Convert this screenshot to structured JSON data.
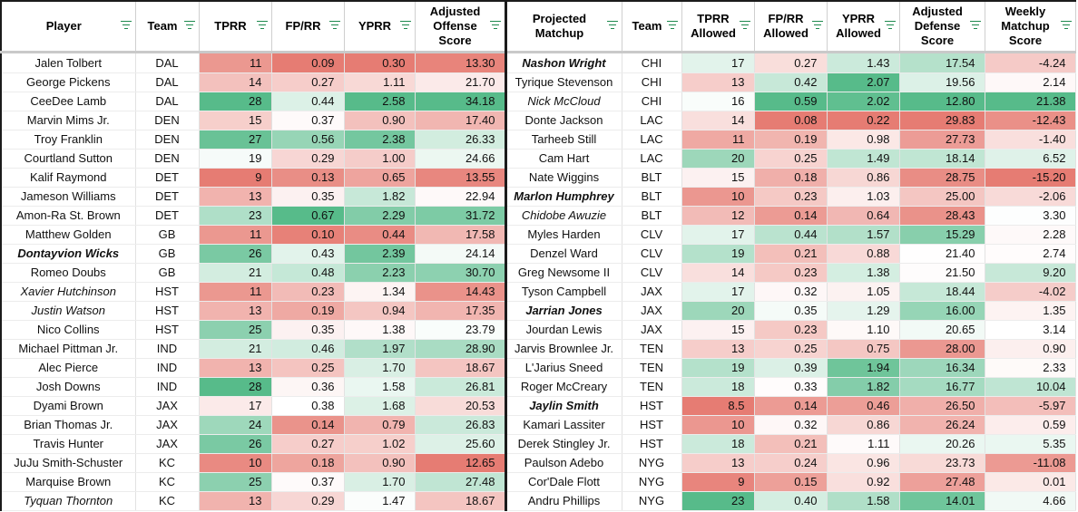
{
  "headers": {
    "player": "Player",
    "team": "Team",
    "tprr": "TPRR",
    "fprr": "FP/RR",
    "yprr": "YPRR",
    "adj_offense": "Adjusted Offense Score",
    "matchup": "Projected Matchup",
    "team2": "Team",
    "tprr_allowed": "TPRR Allowed",
    "fprr_allowed": "FP/RR Allowed",
    "yprr_allowed": "YPRR Allowed",
    "adj_defense": "Adjusted Defense Score",
    "weekly_score": "Weekly Matchup Score"
  },
  "colors": {
    "green_strong": "#57bb8a",
    "red_strong": "#e67c73",
    "neutral": "#ffffff",
    "filter_icon": "#1e8a4e"
  },
  "rows": [
    {
      "player": "Jalen Tolbert",
      "player_style": "",
      "team": "DAL",
      "tprr": "11",
      "fprr": "0.09",
      "yprr": "0.30",
      "adj_off": "13.30",
      "matchup": "Nashon Wright",
      "matchup_style": "bi",
      "team2": "CHI",
      "tprr_a": "17",
      "fprr_a": "0.27",
      "yprr_a": "1.43",
      "adj_def": "17.54",
      "weekly": "-4.24"
    },
    {
      "player": "George Pickens",
      "player_style": "",
      "team": "DAL",
      "tprr": "14",
      "fprr": "0.27",
      "yprr": "1.11",
      "adj_off": "21.70",
      "matchup": "Tyrique Stevenson",
      "matchup_style": "",
      "team2": "CHI",
      "tprr_a": "13",
      "fprr_a": "0.42",
      "yprr_a": "2.07",
      "adj_def": "19.56",
      "weekly": "2.14"
    },
    {
      "player": "CeeDee Lamb",
      "player_style": "",
      "team": "DAL",
      "tprr": "28",
      "fprr": "0.44",
      "yprr": "2.58",
      "adj_off": "34.18",
      "matchup": "Nick McCloud",
      "matchup_style": "it",
      "team2": "CHI",
      "tprr_a": "16",
      "fprr_a": "0.59",
      "yprr_a": "2.02",
      "adj_def": "12.80",
      "weekly": "21.38"
    },
    {
      "player": "Marvin Mims Jr.",
      "player_style": "",
      "team": "DEN",
      "tprr": "15",
      "fprr": "0.37",
      "yprr": "0.90",
      "adj_off": "17.40",
      "matchup": "Donte Jackson",
      "matchup_style": "",
      "team2": "LAC",
      "tprr_a": "14",
      "fprr_a": "0.08",
      "yprr_a": "0.22",
      "adj_def": "29.83",
      "weekly": "-12.43"
    },
    {
      "player": "Troy Franklin",
      "player_style": "",
      "team": "DEN",
      "tprr": "27",
      "fprr": "0.56",
      "yprr": "2.38",
      "adj_off": "26.33",
      "matchup": "Tarheeb Still",
      "matchup_style": "",
      "team2": "LAC",
      "tprr_a": "11",
      "fprr_a": "0.19",
      "yprr_a": "0.98",
      "adj_def": "27.73",
      "weekly": "-1.40"
    },
    {
      "player": "Courtland Sutton",
      "player_style": "",
      "team": "DEN",
      "tprr": "19",
      "fprr": "0.29",
      "yprr": "1.00",
      "adj_off": "24.66",
      "matchup": "Cam Hart",
      "matchup_style": "",
      "team2": "LAC",
      "tprr_a": "20",
      "fprr_a": "0.25",
      "yprr_a": "1.49",
      "adj_def": "18.14",
      "weekly": "6.52"
    },
    {
      "player": "Kalif Raymond",
      "player_style": "",
      "team": "DET",
      "tprr": "9",
      "fprr": "0.13",
      "yprr": "0.65",
      "adj_off": "13.55",
      "matchup": "Nate Wiggins",
      "matchup_style": "",
      "team2": "BLT",
      "tprr_a": "15",
      "fprr_a": "0.18",
      "yprr_a": "0.86",
      "adj_def": "28.75",
      "weekly": "-15.20"
    },
    {
      "player": "Jameson Williams",
      "player_style": "",
      "team": "DET",
      "tprr": "13",
      "fprr": "0.35",
      "yprr": "1.82",
      "adj_off": "22.94",
      "matchup": "Marlon Humphrey",
      "matchup_style": "bi",
      "team2": "BLT",
      "tprr_a": "10",
      "fprr_a": "0.23",
      "yprr_a": "1.03",
      "adj_def": "25.00",
      "weekly": "-2.06"
    },
    {
      "player": "Amon-Ra St. Brown",
      "player_style": "",
      "team": "DET",
      "tprr": "23",
      "fprr": "0.67",
      "yprr": "2.29",
      "adj_off": "31.72",
      "matchup": "Chidobe Awuzie",
      "matchup_style": "it",
      "team2": "BLT",
      "tprr_a": "12",
      "fprr_a": "0.14",
      "yprr_a": "0.64",
      "adj_def": "28.43",
      "weekly": "3.30"
    },
    {
      "player": "Matthew Golden",
      "player_style": "",
      "team": "GB",
      "tprr": "11",
      "fprr": "0.10",
      "yprr": "0.44",
      "adj_off": "17.58",
      "matchup": "Myles Harden",
      "matchup_style": "",
      "team2": "CLV",
      "tprr_a": "17",
      "fprr_a": "0.44",
      "yprr_a": "1.57",
      "adj_def": "15.29",
      "weekly": "2.28"
    },
    {
      "player": "Dontayvion Wicks",
      "player_style": "bi",
      "team": "GB",
      "tprr": "26",
      "fprr": "0.43",
      "yprr": "2.39",
      "adj_off": "24.14",
      "matchup": "Denzel Ward",
      "matchup_style": "",
      "team2": "CLV",
      "tprr_a": "19",
      "fprr_a": "0.21",
      "yprr_a": "0.88",
      "adj_def": "21.40",
      "weekly": "2.74"
    },
    {
      "player": "Romeo Doubs",
      "player_style": "",
      "team": "GB",
      "tprr": "21",
      "fprr": "0.48",
      "yprr": "2.23",
      "adj_off": "30.70",
      "matchup": "Greg Newsome II",
      "matchup_style": "",
      "team2": "CLV",
      "tprr_a": "14",
      "fprr_a": "0.23",
      "yprr_a": "1.38",
      "adj_def": "21.50",
      "weekly": "9.20"
    },
    {
      "player": "Xavier Hutchinson",
      "player_style": "it",
      "team": "HST",
      "tprr": "11",
      "fprr": "0.23",
      "yprr": "1.34",
      "adj_off": "14.43",
      "matchup": "Tyson Campbell",
      "matchup_style": "",
      "team2": "JAX",
      "tprr_a": "17",
      "fprr_a": "0.32",
      "yprr_a": "1.05",
      "adj_def": "18.44",
      "weekly": "-4.02"
    },
    {
      "player": "Justin Watson",
      "player_style": "it",
      "team": "HST",
      "tprr": "13",
      "fprr": "0.19",
      "yprr": "0.94",
      "adj_off": "17.35",
      "matchup": "Jarrian Jones",
      "matchup_style": "bi",
      "team2": "JAX",
      "tprr_a": "20",
      "fprr_a": "0.35",
      "yprr_a": "1.29",
      "adj_def": "16.00",
      "weekly": "1.35"
    },
    {
      "player": "Nico Collins",
      "player_style": "",
      "team": "HST",
      "tprr": "25",
      "fprr": "0.35",
      "yprr": "1.38",
      "adj_off": "23.79",
      "matchup": "Jourdan Lewis",
      "matchup_style": "",
      "team2": "JAX",
      "tprr_a": "15",
      "fprr_a": "0.23",
      "yprr_a": "1.10",
      "adj_def": "20.65",
      "weekly": "3.14"
    },
    {
      "player": "Michael Pittman Jr.",
      "player_style": "",
      "team": "IND",
      "tprr": "21",
      "fprr": "0.46",
      "yprr": "1.97",
      "adj_off": "28.90",
      "matchup": "Jarvis Brownlee Jr.",
      "matchup_style": "",
      "team2": "TEN",
      "tprr_a": "13",
      "fprr_a": "0.25",
      "yprr_a": "0.75",
      "adj_def": "28.00",
      "weekly": "0.90"
    },
    {
      "player": "Alec Pierce",
      "player_style": "",
      "team": "IND",
      "tprr": "13",
      "fprr": "0.25",
      "yprr": "1.70",
      "adj_off": "18.67",
      "matchup": "L'Jarius Sneed",
      "matchup_style": "",
      "team2": "TEN",
      "tprr_a": "19",
      "fprr_a": "0.39",
      "yprr_a": "1.94",
      "adj_def": "16.34",
      "weekly": "2.33"
    },
    {
      "player": "Josh Downs",
      "player_style": "",
      "team": "IND",
      "tprr": "28",
      "fprr": "0.36",
      "yprr": "1.58",
      "adj_off": "26.81",
      "matchup": "Roger McCreary",
      "matchup_style": "",
      "team2": "TEN",
      "tprr_a": "18",
      "fprr_a": "0.33",
      "yprr_a": "1.82",
      "adj_def": "16.77",
      "weekly": "10.04"
    },
    {
      "player": "Dyami Brown",
      "player_style": "",
      "team": "JAX",
      "tprr": "17",
      "fprr": "0.38",
      "yprr": "1.68",
      "adj_off": "20.53",
      "matchup": "Jaylin Smith",
      "matchup_style": "bi",
      "team2": "HST",
      "tprr_a": "8.5",
      "fprr_a": "0.14",
      "yprr_a": "0.46",
      "adj_def": "26.50",
      "weekly": "-5.97"
    },
    {
      "player": "Brian Thomas Jr.",
      "player_style": "",
      "team": "JAX",
      "tprr": "24",
      "fprr": "0.14",
      "yprr": "0.79",
      "adj_off": "26.83",
      "matchup": "Kamari Lassiter",
      "matchup_style": "",
      "team2": "HST",
      "tprr_a": "10",
      "fprr_a": "0.32",
      "yprr_a": "0.86",
      "adj_def": "26.24",
      "weekly": "0.59"
    },
    {
      "player": "Travis Hunter",
      "player_style": "",
      "team": "JAX",
      "tprr": "26",
      "fprr": "0.27",
      "yprr": "1.02",
      "adj_off": "25.60",
      "matchup": "Derek Stingley Jr.",
      "matchup_style": "",
      "team2": "HST",
      "tprr_a": "18",
      "fprr_a": "0.21",
      "yprr_a": "1.11",
      "adj_def": "20.26",
      "weekly": "5.35"
    },
    {
      "player": "JuJu Smith-Schuster",
      "player_style": "",
      "team": "KC",
      "tprr": "10",
      "fprr": "0.18",
      "yprr": "0.90",
      "adj_off": "12.65",
      "matchup": "Paulson Adebo",
      "matchup_style": "",
      "team2": "NYG",
      "tprr_a": "13",
      "fprr_a": "0.24",
      "yprr_a": "0.96",
      "adj_def": "23.73",
      "weekly": "-11.08"
    },
    {
      "player": "Marquise Brown",
      "player_style": "",
      "team": "KC",
      "tprr": "25",
      "fprr": "0.37",
      "yprr": "1.70",
      "adj_off": "27.48",
      "matchup": "Cor'Dale Flott",
      "matchup_style": "",
      "team2": "NYG",
      "tprr_a": "9",
      "fprr_a": "0.15",
      "yprr_a": "0.92",
      "adj_def": "27.48",
      "weekly": "0.01"
    },
    {
      "player": "Tyquan Thornton",
      "player_style": "it",
      "team": "KC",
      "tprr": "13",
      "fprr": "0.29",
      "yprr": "1.47",
      "adj_off": "18.67",
      "matchup": "Andru Phillips",
      "matchup_style": "",
      "team2": "NYG",
      "tprr_a": "23",
      "fprr_a": "0.40",
      "yprr_a": "1.58",
      "adj_def": "14.01",
      "weekly": "4.66"
    }
  ]
}
